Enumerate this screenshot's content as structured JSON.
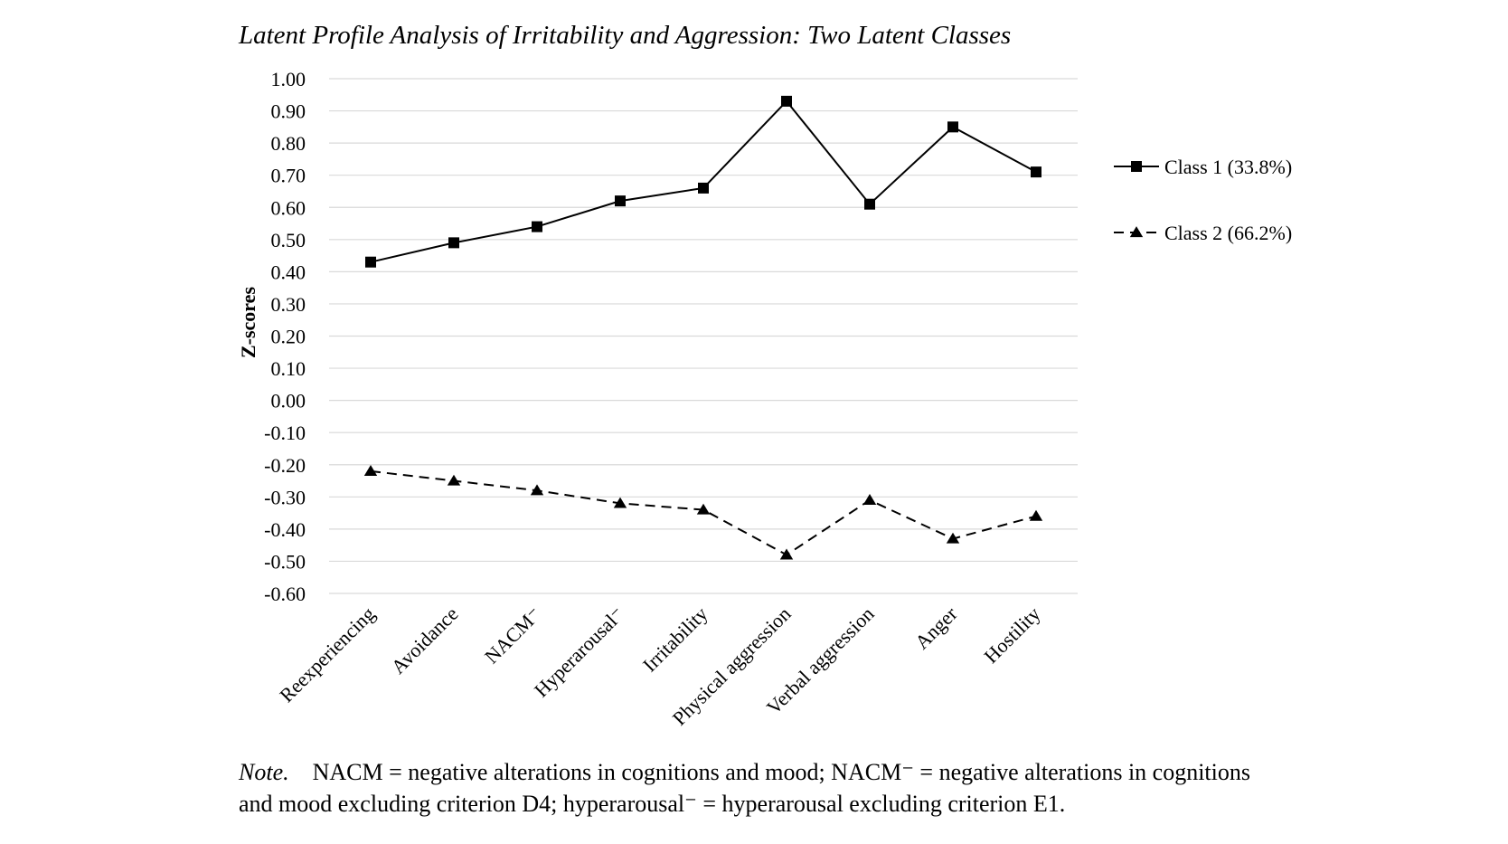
{
  "chart_data": {
    "type": "line",
    "title": "Latent Profile Analysis of Irritability and Aggression: Two Latent Classes",
    "xlabel": "",
    "ylabel": "Z-scores",
    "ylim": [
      -0.6,
      1.0
    ],
    "yticks": [
      "1.00",
      "0.90",
      "0.80",
      "0.70",
      "0.60",
      "0.50",
      "0.40",
      "0.30",
      "0.20",
      "0.10",
      "0.00",
      "-0.10",
      "-0.20",
      "-0.30",
      "-0.40",
      "-0.50",
      "-0.60"
    ],
    "categories": [
      "Reexperiencing",
      "Avoidance",
      "NACM⁻",
      "Hyperarousal⁻",
      "Irritability",
      "Physical aggression",
      "Verbal aggression",
      "Anger",
      "Hostility"
    ],
    "series": [
      {
        "name": "Class 1 (33.8%)",
        "marker": "square",
        "line": "solid",
        "values": [
          0.43,
          0.49,
          0.54,
          0.62,
          0.66,
          0.93,
          0.61,
          0.85,
          0.71
        ]
      },
      {
        "name": "Class 2 (66.2%)",
        "marker": "triangle",
        "line": "dashed",
        "values": [
          -0.22,
          -0.25,
          -0.28,
          -0.32,
          -0.34,
          -0.48,
          -0.31,
          -0.43,
          -0.36
        ]
      }
    ],
    "grid": "horizontal",
    "legend_position": "right",
    "colors": {
      "line": "#000000",
      "grid": "#d9d9d9"
    }
  },
  "note": {
    "label": "Note.",
    "line1": "NACM = negative alterations in cognitions and mood; NACM⁻ = negative alterations in cognitions",
    "line2": "and mood excluding criterion D4; hyperarousal⁻ = hyperarousal excluding criterion E1."
  }
}
